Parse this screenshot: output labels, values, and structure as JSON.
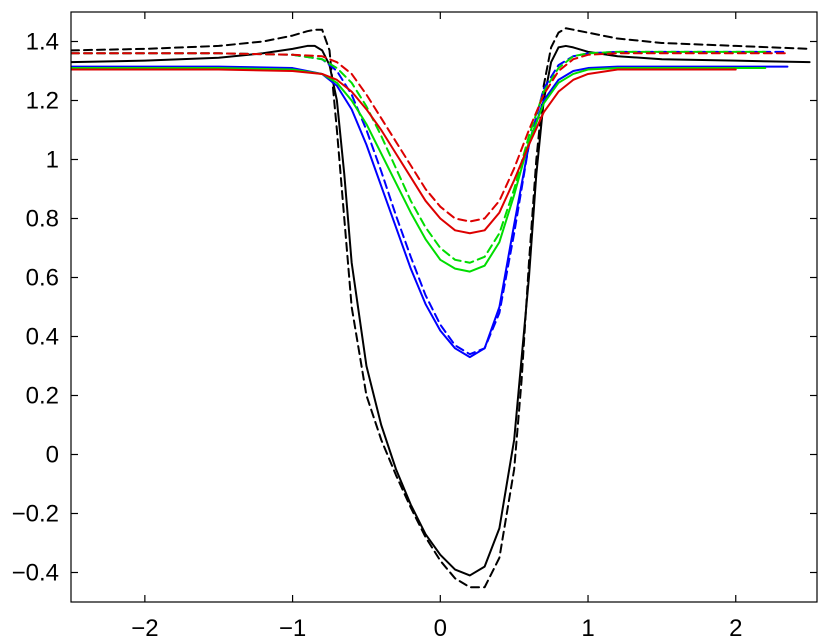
{
  "chart_data": {
    "type": "line",
    "title": "",
    "xlabel": "",
    "ylabel": "",
    "xlim": [
      -2.5,
      2.55
    ],
    "ylim": [
      -0.5,
      1.5
    ],
    "grid": false,
    "x_ticks": [
      -2,
      -1,
      0,
      1,
      2
    ],
    "x_tick_labels": [
      "−2",
      "−1",
      "0",
      "1",
      "2"
    ],
    "y_ticks": [
      -0.4,
      -0.2,
      0,
      0.2,
      0.4,
      0.6,
      0.8,
      1,
      1.2,
      1.4
    ],
    "y_tick_labels": [
      "−0.4",
      "−0.2",
      "0",
      "0.2",
      "0.4",
      "0.6",
      "0.8",
      "1",
      "1.2",
      "1.4"
    ],
    "series": [
      {
        "color": "#000000",
        "dash": "solid",
        "x": [
          -2.5,
          -2.0,
          -1.5,
          -1.2,
          -1.0,
          -0.9,
          -0.85,
          -0.8,
          -0.75,
          -0.7,
          -0.65,
          -0.6,
          -0.5,
          -0.4,
          -0.3,
          -0.2,
          -0.1,
          0.0,
          0.1,
          0.2,
          0.3,
          0.4,
          0.5,
          0.6,
          0.65,
          0.7,
          0.75,
          0.8,
          0.85,
          0.9,
          1.0,
          1.2,
          1.5,
          2.0,
          2.5
        ],
        "y": [
          1.33,
          1.335,
          1.345,
          1.36,
          1.375,
          1.385,
          1.385,
          1.37,
          1.32,
          1.2,
          0.95,
          0.65,
          0.3,
          0.1,
          -0.05,
          -0.17,
          -0.27,
          -0.34,
          -0.39,
          -0.41,
          -0.38,
          -0.25,
          0.05,
          0.6,
          0.95,
          1.2,
          1.33,
          1.38,
          1.385,
          1.38,
          1.365,
          1.35,
          1.34,
          1.335,
          1.33
        ]
      },
      {
        "color": "#000000",
        "dash": "dashed",
        "x": [
          -2.5,
          -2.0,
          -1.5,
          -1.2,
          -1.0,
          -0.9,
          -0.85,
          -0.8,
          -0.75,
          -0.7,
          -0.65,
          -0.6,
          -0.5,
          -0.4,
          -0.3,
          -0.2,
          -0.1,
          0.0,
          0.1,
          0.2,
          0.3,
          0.4,
          0.5,
          0.55,
          0.6,
          0.65,
          0.7,
          0.75,
          0.8,
          0.85,
          0.9,
          1.0,
          1.2,
          1.5,
          2.0,
          2.5
        ],
        "y": [
          1.37,
          1.375,
          1.385,
          1.4,
          1.42,
          1.435,
          1.44,
          1.44,
          1.37,
          1.1,
          0.8,
          0.5,
          0.2,
          0.05,
          -0.07,
          -0.18,
          -0.28,
          -0.36,
          -0.42,
          -0.45,
          -0.45,
          -0.35,
          -0.05,
          0.25,
          0.65,
          1.0,
          1.25,
          1.38,
          1.43,
          1.445,
          1.44,
          1.43,
          1.41,
          1.395,
          1.385,
          1.375
        ]
      },
      {
        "color": "#0000ff",
        "dash": "solid",
        "x": [
          -2.5,
          -1.5,
          -1.0,
          -0.8,
          -0.7,
          -0.6,
          -0.5,
          -0.4,
          -0.3,
          -0.2,
          -0.1,
          0.0,
          0.1,
          0.2,
          0.3,
          0.4,
          0.5,
          0.6,
          0.7,
          0.8,
          0.9,
          1.0,
          1.2,
          1.5,
          2.0,
          2.35
        ],
        "y": [
          1.315,
          1.315,
          1.31,
          1.29,
          1.25,
          1.17,
          1.05,
          0.91,
          0.77,
          0.63,
          0.51,
          0.42,
          0.36,
          0.33,
          0.36,
          0.5,
          0.78,
          1.05,
          1.2,
          1.27,
          1.3,
          1.31,
          1.315,
          1.315,
          1.315,
          1.315
        ]
      },
      {
        "color": "#0000ff",
        "dash": "dashed",
        "x": [
          -2.5,
          -1.5,
          -1.0,
          -0.8,
          -0.7,
          -0.6,
          -0.5,
          -0.4,
          -0.3,
          -0.2,
          -0.1,
          0.0,
          0.1,
          0.2,
          0.3,
          0.4,
          0.5,
          0.6,
          0.7,
          0.8,
          0.9,
          1.0,
          1.2,
          1.5,
          2.0,
          2.35
        ],
        "y": [
          1.36,
          1.36,
          1.355,
          1.34,
          1.3,
          1.22,
          1.1,
          0.96,
          0.81,
          0.67,
          0.54,
          0.44,
          0.37,
          0.34,
          0.36,
          0.48,
          0.75,
          1.05,
          1.24,
          1.32,
          1.35,
          1.36,
          1.365,
          1.365,
          1.365,
          1.365
        ]
      },
      {
        "color": "#00dd00",
        "dash": "solid",
        "x": [
          -2.5,
          -1.5,
          -1.0,
          -0.8,
          -0.7,
          -0.6,
          -0.5,
          -0.4,
          -0.3,
          -0.2,
          -0.1,
          0.0,
          0.1,
          0.2,
          0.3,
          0.4,
          0.5,
          0.6,
          0.7,
          0.8,
          0.9,
          1.0,
          1.2,
          1.5,
          2.0,
          2.2
        ],
        "y": [
          1.31,
          1.31,
          1.305,
          1.29,
          1.26,
          1.2,
          1.12,
          1.02,
          0.92,
          0.82,
          0.73,
          0.66,
          0.63,
          0.62,
          0.64,
          0.72,
          0.88,
          1.06,
          1.19,
          1.26,
          1.29,
          1.305,
          1.31,
          1.31,
          1.31,
          1.31
        ]
      },
      {
        "color": "#00dd00",
        "dash": "dashed",
        "x": [
          -2.5,
          -1.5,
          -1.0,
          -0.8,
          -0.7,
          -0.6,
          -0.5,
          -0.4,
          -0.3,
          -0.2,
          -0.1,
          0.0,
          0.1,
          0.2,
          0.3,
          0.4,
          0.5,
          0.6,
          0.7,
          0.8,
          0.9,
          1.0,
          1.2,
          1.5,
          2.0,
          2.2
        ],
        "y": [
          1.36,
          1.36,
          1.355,
          1.34,
          1.31,
          1.26,
          1.18,
          1.08,
          0.97,
          0.86,
          0.77,
          0.7,
          0.66,
          0.65,
          0.67,
          0.75,
          0.9,
          1.08,
          1.23,
          1.31,
          1.35,
          1.36,
          1.365,
          1.365,
          1.365,
          1.365
        ]
      },
      {
        "color": "#dd0000",
        "dash": "solid",
        "x": [
          -2.5,
          -1.5,
          -1.0,
          -0.8,
          -0.7,
          -0.6,
          -0.5,
          -0.4,
          -0.3,
          -0.2,
          -0.1,
          0.0,
          0.1,
          0.2,
          0.3,
          0.4,
          0.5,
          0.6,
          0.7,
          0.8,
          0.9,
          1.0,
          1.2,
          1.5,
          2.0
        ],
        "y": [
          1.305,
          1.305,
          1.3,
          1.29,
          1.27,
          1.23,
          1.17,
          1.1,
          1.02,
          0.94,
          0.86,
          0.8,
          0.76,
          0.75,
          0.76,
          0.82,
          0.93,
          1.05,
          1.16,
          1.23,
          1.27,
          1.29,
          1.305,
          1.305,
          1.305
        ]
      },
      {
        "color": "#dd0000",
        "dash": "dashed",
        "x": [
          -2.5,
          -1.5,
          -1.0,
          -0.8,
          -0.7,
          -0.6,
          -0.5,
          -0.4,
          -0.3,
          -0.2,
          -0.1,
          0.0,
          0.1,
          0.2,
          0.3,
          0.4,
          0.5,
          0.6,
          0.7,
          0.8,
          0.9,
          1.0,
          1.2,
          1.5,
          2.0,
          2.35
        ],
        "y": [
          1.36,
          1.36,
          1.355,
          1.35,
          1.33,
          1.29,
          1.22,
          1.14,
          1.06,
          0.98,
          0.9,
          0.84,
          0.8,
          0.79,
          0.8,
          0.86,
          0.97,
          1.1,
          1.22,
          1.3,
          1.34,
          1.355,
          1.36,
          1.36,
          1.36,
          1.36
        ]
      }
    ]
  }
}
